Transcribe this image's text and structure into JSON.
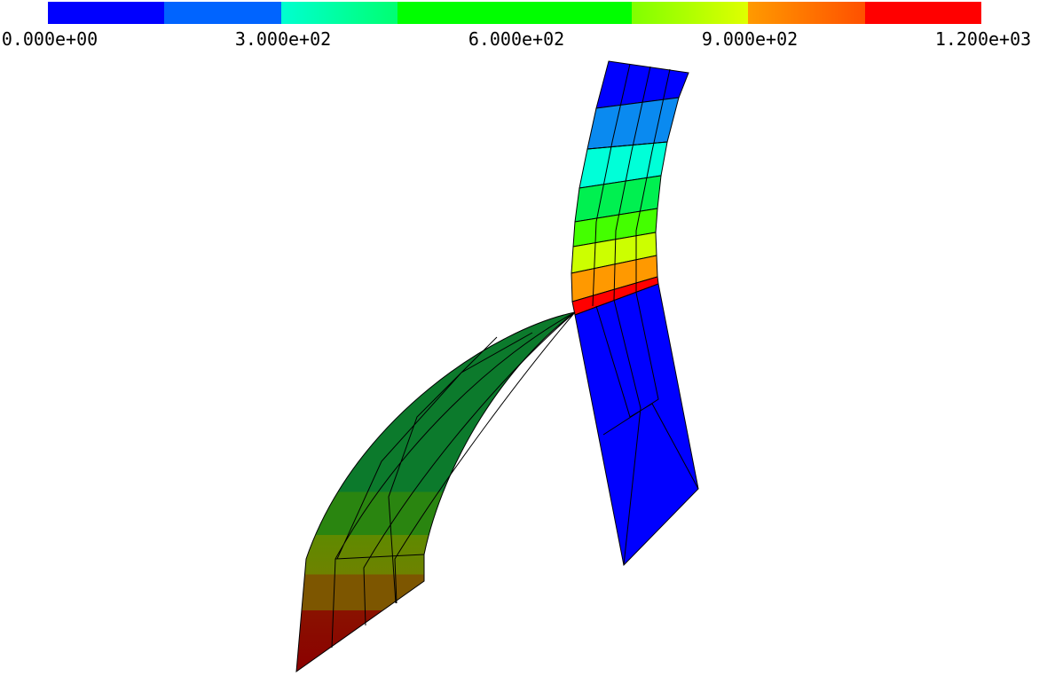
{
  "colorbar": {
    "labels": [
      "0.000e+00",
      "3.000e+02",
      "6.000e+02",
      "9.000e+02",
      "1.200e+03"
    ]
  }
}
